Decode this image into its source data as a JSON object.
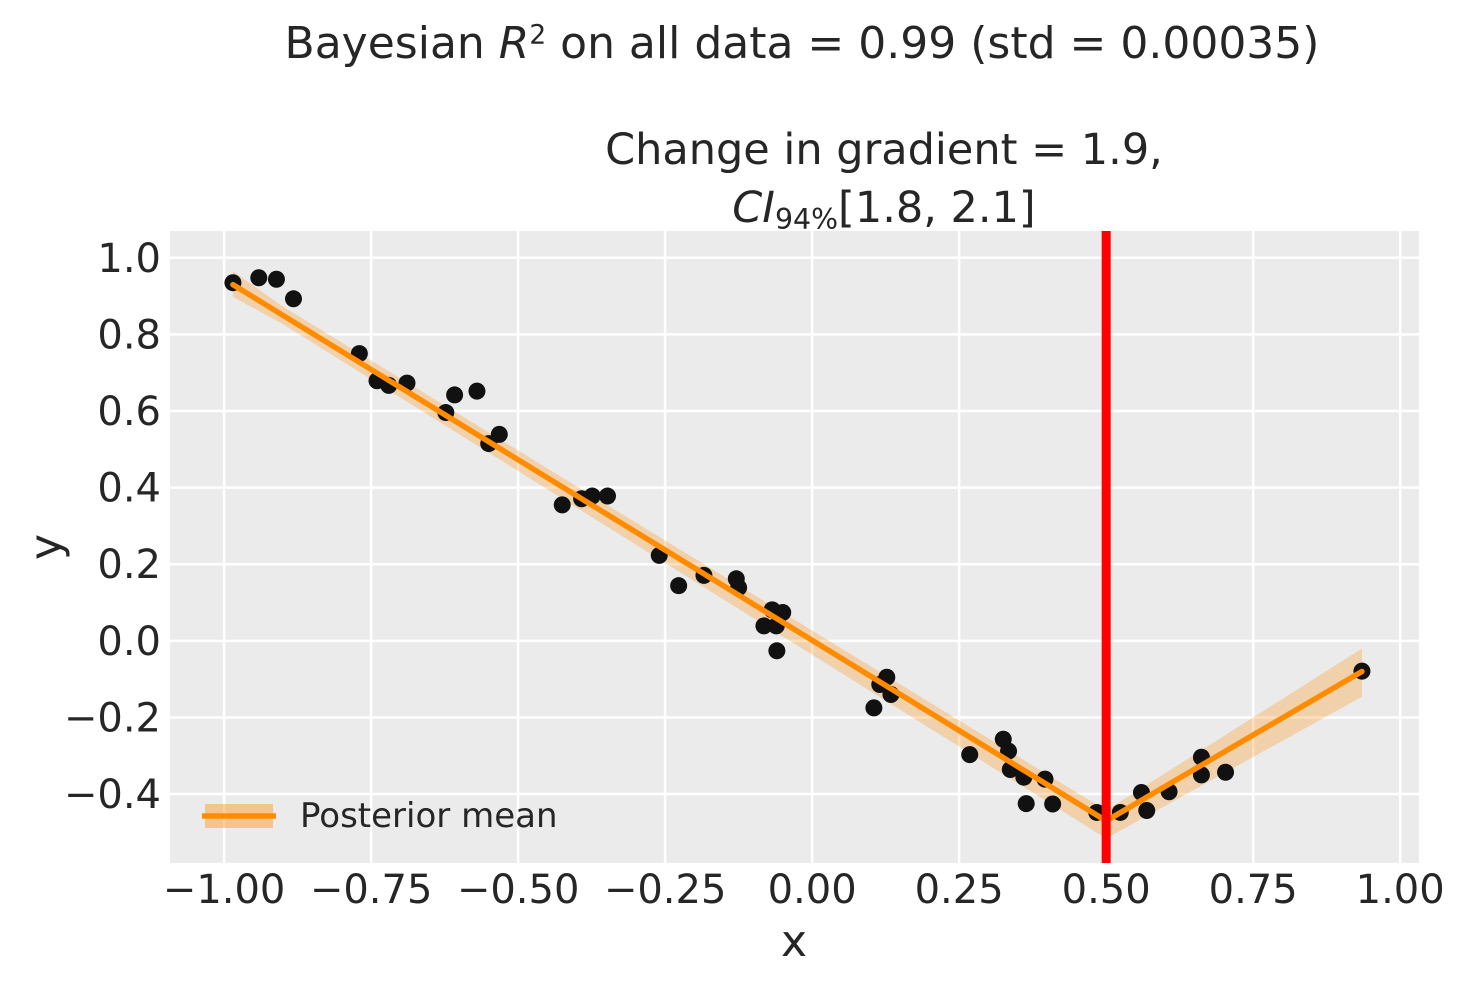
{
  "title": {
    "pre": "Bayesian ",
    "var": "R",
    "sup": "2",
    "post": " on all data = 0.99 (std = 0.00035)"
  },
  "subtitle": {
    "line1": "Change in gradient = 1.9,",
    "ci_var": "CI",
    "ci_sub": "94%",
    "ci_rest": "[1.8, 2.1]"
  },
  "chart_data": {
    "type": "scatter",
    "title": "Bayesian R^2 on all data = 0.99 (std = 0.00035)",
    "subtitle": "Change in gradient = 1.9, CI_94%[1.8, 2.1]",
    "xlabel": "x",
    "ylabel": "y",
    "xlim": [
      -1.092,
      1.032
    ],
    "ylim": [
      -0.58,
      1.07
    ],
    "grid": true,
    "legend": {
      "label": "Posterior mean",
      "position": "lower left"
    },
    "colors": {
      "plot_background": "#ebebeb",
      "gridline": "#ffffff",
      "scatter": "#111111",
      "posterior_mean": "#ff8c00",
      "credible_band": "#ff8c00",
      "credible_band_opacity": 0.27,
      "changepoint_line": "#ff0000",
      "text": "#262626"
    },
    "x_tick_values": [
      -1.0,
      -0.75,
      -0.5,
      -0.25,
      0.0,
      0.25,
      0.5,
      0.75,
      1.0
    ],
    "x_tick_labels": [
      "−1.00",
      "−0.75",
      "−0.50",
      "−0.25",
      "0.00",
      "0.25",
      "0.50",
      "0.75",
      "1.00"
    ],
    "y_tick_values": [
      1.0,
      0.8,
      0.6,
      0.4,
      0.2,
      0.0,
      -0.2,
      -0.4
    ],
    "y_tick_labels": [
      "1.0",
      "0.8",
      "0.6",
      "0.4",
      "0.2",
      "0.0",
      "−0.2",
      "−0.4"
    ],
    "scatter_points": [
      [
        -0.985,
        0.935
      ],
      [
        -0.941,
        0.948
      ],
      [
        -0.911,
        0.944
      ],
      [
        -0.882,
        0.893
      ],
      [
        -0.77,
        0.75
      ],
      [
        -0.74,
        0.679
      ],
      [
        -0.72,
        0.667
      ],
      [
        -0.689,
        0.673
      ],
      [
        -0.623,
        0.596
      ],
      [
        -0.608,
        0.642
      ],
      [
        -0.57,
        0.652
      ],
      [
        -0.55,
        0.515
      ],
      [
        -0.532,
        0.539
      ],
      [
        -0.425,
        0.355
      ],
      [
        -0.392,
        0.371
      ],
      [
        -0.374,
        0.378
      ],
      [
        -0.348,
        0.378
      ],
      [
        -0.26,
        0.223
      ],
      [
        -0.227,
        0.144
      ],
      [
        -0.184,
        0.171
      ],
      [
        -0.129,
        0.162
      ],
      [
        -0.125,
        0.139
      ],
      [
        -0.082,
        0.039
      ],
      [
        -0.068,
        0.081
      ],
      [
        -0.061,
        0.039
      ],
      [
        -0.06,
        -0.026
      ],
      [
        -0.05,
        0.074
      ],
      [
        0.115,
        -0.114
      ],
      [
        0.105,
        -0.175
      ],
      [
        0.127,
        -0.095
      ],
      [
        0.134,
        -0.14
      ],
      [
        0.268,
        -0.297
      ],
      [
        0.325,
        -0.257
      ],
      [
        0.334,
        -0.288
      ],
      [
        0.337,
        -0.336
      ],
      [
        0.36,
        -0.356
      ],
      [
        0.396,
        -0.361
      ],
      [
        0.364,
        -0.425
      ],
      [
        0.409,
        -0.426
      ],
      [
        0.484,
        -0.448
      ],
      [
        0.524,
        -0.448
      ],
      [
        0.56,
        -0.396
      ],
      [
        0.569,
        -0.443
      ],
      [
        0.607,
        -0.394
      ],
      [
        0.662,
        -0.304
      ],
      [
        0.662,
        -0.35
      ],
      [
        0.703,
        -0.343
      ],
      [
        0.935,
        -0.079
      ]
    ],
    "posterior_mean_line": [
      [
        -0.985,
        0.93
      ],
      [
        0.5,
        -0.47
      ],
      [
        0.935,
        -0.08
      ]
    ],
    "credible_band": {
      "upper": [
        [
          -0.985,
          0.965
        ],
        [
          -0.9,
          0.873
        ],
        [
          0.5,
          -0.443
        ],
        [
          0.935,
          -0.02
        ]
      ],
      "lower": [
        [
          -0.985,
          0.898
        ],
        [
          -0.9,
          0.827
        ],
        [
          0.5,
          -0.516
        ],
        [
          0.935,
          -0.146
        ]
      ]
    },
    "changepoint_x": 0.5
  }
}
